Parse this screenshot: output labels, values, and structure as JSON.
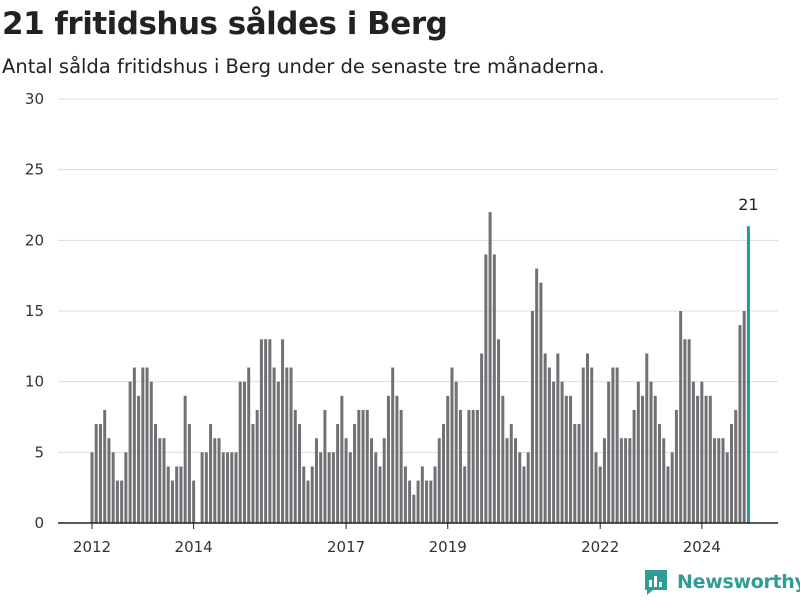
{
  "header": {
    "title": "21 fritidshus såldes i Berg",
    "subtitle": "Antal sålda fritidshus i Berg under de senaste tre månaderna."
  },
  "brand": {
    "name": "Newsworthy",
    "icon": "newsworthy-logo-icon",
    "color": "#2e9e94"
  },
  "colors": {
    "bar": "#727075",
    "highlight": "#1a9c97",
    "grid": "#dddddd",
    "axis": "#222222"
  },
  "chart_data": {
    "type": "bar",
    "x_start": "2012-01",
    "x_step": "month",
    "x_ticks": [
      "2012",
      "2014",
      "2017",
      "2019",
      "2022",
      "2024"
    ],
    "ylim": [
      0,
      30
    ],
    "y_ticks": [
      0,
      5,
      10,
      15,
      20,
      25,
      30
    ],
    "grid": true,
    "values": [
      5,
      7,
      7,
      8,
      6,
      5,
      3,
      3,
      5,
      10,
      11,
      9,
      11,
      11,
      10,
      7,
      6,
      6,
      4,
      3,
      4,
      4,
      9,
      7,
      3,
      0,
      5,
      5,
      7,
      6,
      6,
      5,
      5,
      5,
      5,
      10,
      10,
      11,
      7,
      8,
      13,
      13,
      13,
      11,
      10,
      13,
      11,
      11,
      8,
      7,
      4,
      3,
      4,
      6,
      5,
      8,
      5,
      5,
      7,
      9,
      6,
      5,
      7,
      8,
      8,
      8,
      6,
      5,
      4,
      6,
      9,
      11,
      9,
      8,
      4,
      3,
      2,
      3,
      4,
      3,
      3,
      4,
      6,
      7,
      9,
      11,
      10,
      8,
      4,
      8,
      8,
      8,
      12,
      19,
      22,
      19,
      13,
      9,
      6,
      7,
      6,
      5,
      4,
      5,
      15,
      18,
      17,
      12,
      11,
      10,
      12,
      10,
      9,
      9,
      7,
      7,
      11,
      12,
      11,
      5,
      4,
      6,
      10,
      11,
      11,
      6,
      6,
      6,
      8,
      10,
      9,
      12,
      10,
      9,
      7,
      6,
      4,
      5,
      8,
      15,
      13,
      13,
      10,
      9,
      10,
      9,
      9,
      6,
      6,
      6,
      5,
      7,
      8,
      14,
      15,
      21
    ],
    "highlight_index": 155,
    "highlight_label": "21"
  }
}
